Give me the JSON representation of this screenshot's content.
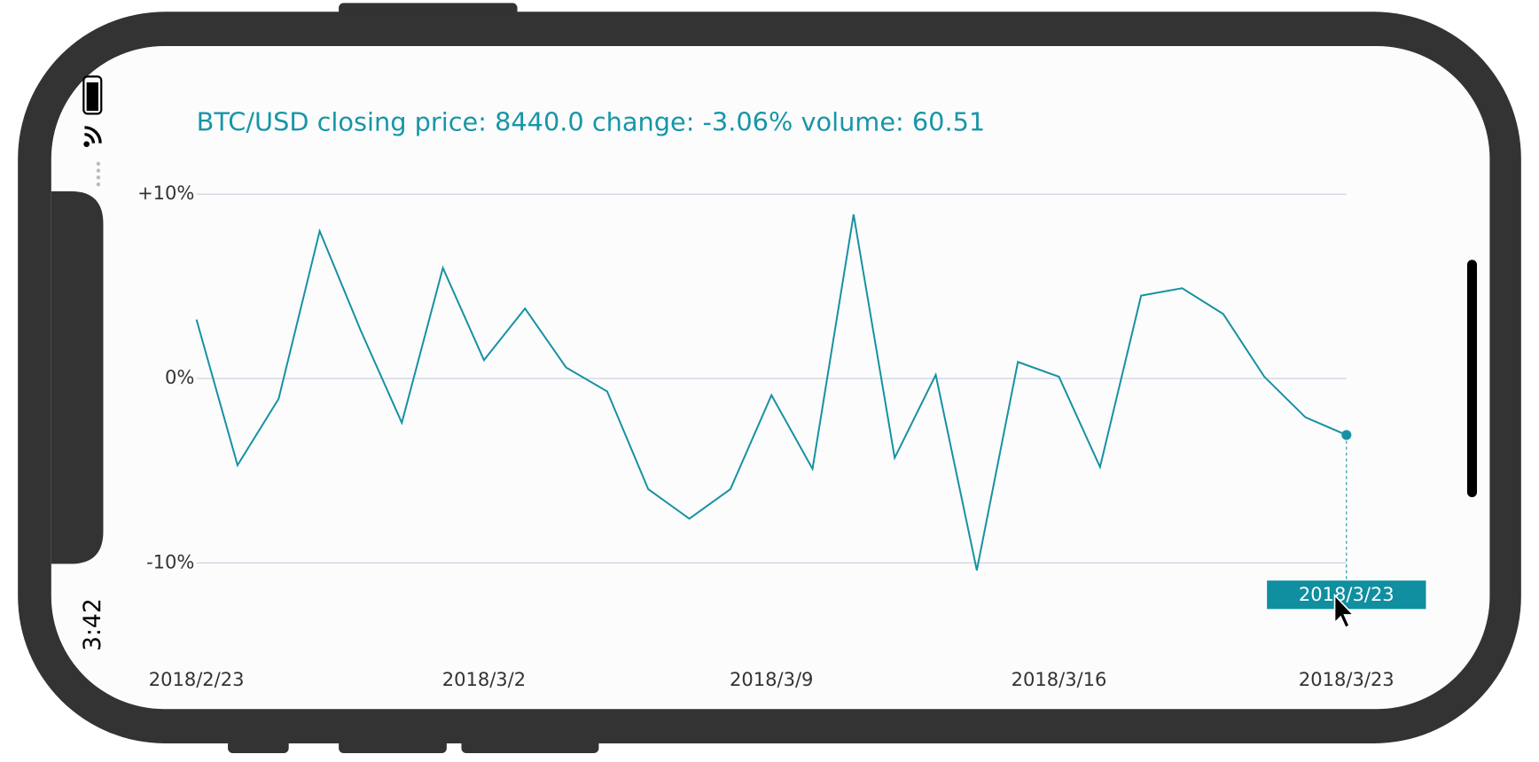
{
  "status_bar": {
    "time": "3:42"
  },
  "chart_data": {
    "type": "line",
    "title": "BTC/USD closing price: 8440.0 change: -3.06%  volume: 60.51",
    "categories": [
      "2018/2/23",
      null,
      null,
      null,
      null,
      null,
      null,
      "2018/3/2",
      null,
      null,
      null,
      null,
      null,
      null,
      "2018/3/9",
      null,
      null,
      null,
      null,
      null,
      null,
      "2018/3/16",
      null,
      null,
      null,
      null,
      null,
      null,
      "2018/3/23"
    ],
    "series": [
      {
        "name": "change",
        "color": "#1691a3",
        "values": [
          3.2,
          -4.7,
          -1.1,
          8.0,
          2.6,
          -2.4,
          6.0,
          1.0,
          3.8,
          0.6,
          -0.7,
          -6.0,
          -7.6,
          -6.0,
          -0.9,
          -4.9,
          8.9,
          -4.3,
          0.2,
          -10.4,
          0.9,
          0.1,
          -4.8,
          4.5,
          4.9,
          3.5,
          0.1,
          -2.1,
          -3.06
        ]
      }
    ],
    "ylim": [
      -14,
      10
    ],
    "yticks": [
      {
        "value": 10,
        "label": "+10%"
      },
      {
        "value": 0,
        "label": "0%"
      },
      {
        "value": -10,
        "label": "-10%"
      }
    ],
    "grid": true,
    "tooltip_index": 28
  }
}
